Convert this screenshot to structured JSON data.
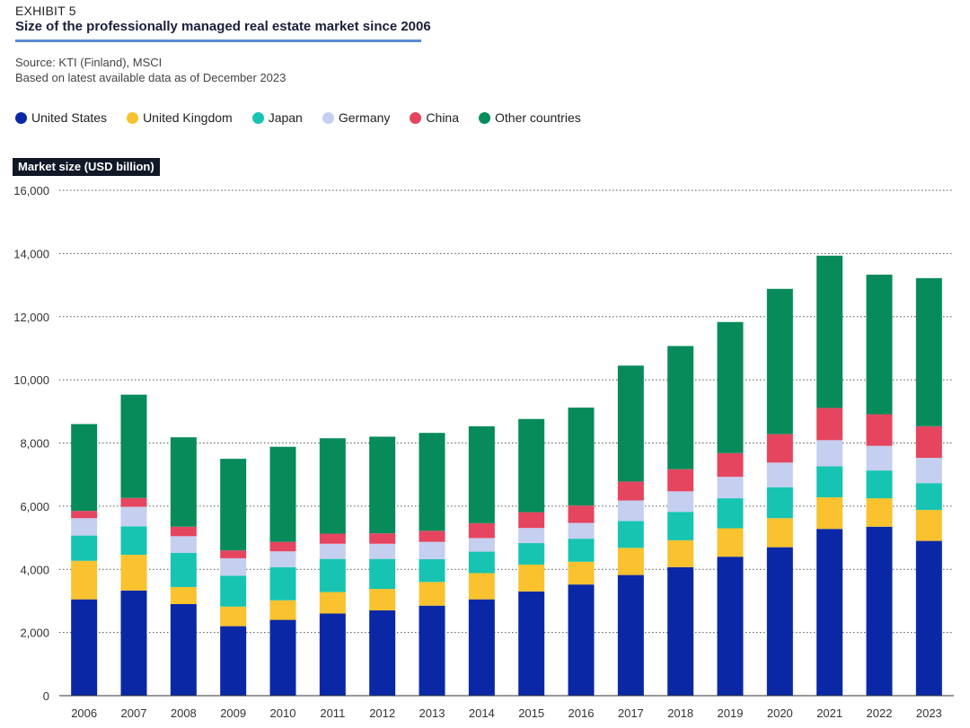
{
  "header": {
    "exhibit": "EXHIBIT 5",
    "title": "Size of the professionally managed real estate market since 2006",
    "source_line1": "Source: KTI (Finland), MSCI",
    "source_line2": "Based on latest available data as of December 2023"
  },
  "chart_data": {
    "type": "bar",
    "stacked": true,
    "title": "Size of the professionally managed real estate market since 2006",
    "ylabel": "Market size (USD billion)",
    "xlabel": "",
    "ylim": [
      0,
      16000
    ],
    "yticks": [
      0,
      2000,
      4000,
      6000,
      8000,
      10000,
      12000,
      14000,
      16000
    ],
    "ytick_labels": [
      "0",
      "2,000",
      "4,000",
      "6,000",
      "8,000",
      "10,000",
      "12,000",
      "14,000",
      "16,000"
    ],
    "grid": "dotted horizontal",
    "legend_position": "top",
    "categories": [
      "2006",
      "2007",
      "2008",
      "2009",
      "2010",
      "2011",
      "2012",
      "2013",
      "2014",
      "2015",
      "2016",
      "2017",
      "2018",
      "2019",
      "2020",
      "2021",
      "2022",
      "2023"
    ],
    "series": [
      {
        "name": "United States",
        "color": "#0a28a6",
        "values": [
          3050,
          3330,
          2900,
          2200,
          2400,
          2600,
          2700,
          2850,
          3050,
          3300,
          3520,
          3820,
          4070,
          4400,
          4700,
          5280,
          5350,
          4900
        ]
      },
      {
        "name": "United Kingdom",
        "color": "#f9c22e",
        "values": [
          1220,
          1130,
          540,
          620,
          620,
          680,
          680,
          750,
          830,
          850,
          720,
          860,
          850,
          900,
          920,
          1000,
          900,
          980
        ]
      },
      {
        "name": "Japan",
        "color": "#17c4b2",
        "values": [
          800,
          900,
          1080,
          980,
          1050,
          1050,
          950,
          720,
          680,
          680,
          730,
          850,
          900,
          950,
          980,
          980,
          880,
          850
        ]
      },
      {
        "name": "Germany",
        "color": "#c5cff0",
        "values": [
          550,
          620,
          530,
          550,
          500,
          480,
          480,
          550,
          430,
          480,
          500,
          650,
          650,
          680,
          780,
          830,
          780,
          800
        ]
      },
      {
        "name": "China",
        "color": "#e5455f",
        "values": [
          230,
          280,
          300,
          250,
          300,
          320,
          330,
          350,
          470,
          500,
          550,
          600,
          700,
          750,
          900,
          1020,
          1000,
          1000
        ]
      },
      {
        "name": "Other countries",
        "color": "#078b5b",
        "values": [
          2750,
          3270,
          2830,
          2900,
          3010,
          3020,
          3060,
          3100,
          3070,
          2950,
          3100,
          3670,
          3900,
          4150,
          4600,
          4820,
          4420,
          4690
        ]
      }
    ]
  }
}
